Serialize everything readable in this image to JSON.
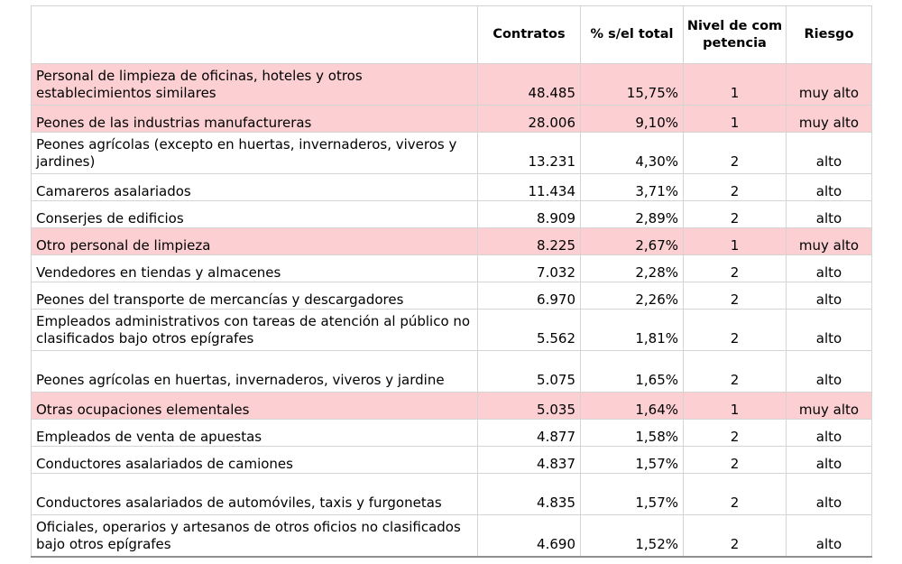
{
  "table": {
    "headers": {
      "name": "",
      "contracts": "Contratos",
      "percent": "% s/el total",
      "level": "Nivel de competencia",
      "risk": "Riesgo"
    },
    "highlight_color": "#fcd0d3",
    "rows": [
      {
        "name": "Personal de limpieza de oficinas, hoteles y otros establecimientos similares",
        "contracts": "48.485",
        "percent": "15,75%",
        "level": "1",
        "risk": "muy alto",
        "highlighted": true
      },
      {
        "name": "Peones de las industrias manufactureras",
        "contracts": "28.006",
        "percent": "9,10%",
        "level": "1",
        "risk": "muy alto",
        "highlighted": true
      },
      {
        "name": "Peones agrícolas (excepto en huertas, invernaderos, viveros y jardines)",
        "contracts": "13.231",
        "percent": "4,30%",
        "level": "2",
        "risk": "alto",
        "highlighted": false
      },
      {
        "name": "Camareros asalariados",
        "contracts": "11.434",
        "percent": "3,71%",
        "level": "2",
        "risk": "alto",
        "highlighted": false
      },
      {
        "name": "Conserjes de edificios",
        "contracts": "8.909",
        "percent": "2,89%",
        "level": "2",
        "risk": "alto",
        "highlighted": false
      },
      {
        "name": "Otro personal de limpieza",
        "contracts": "8.225",
        "percent": "2,67%",
        "level": "1",
        "risk": "muy alto",
        "highlighted": true
      },
      {
        "name": "Vendedores en tiendas y almacenes",
        "contracts": "7.032",
        "percent": "2,28%",
        "level": "2",
        "risk": "alto",
        "highlighted": false
      },
      {
        "name": "Peones del transporte de mercancías y descargadores",
        "contracts": "6.970",
        "percent": "2,26%",
        "level": "2",
        "risk": "alto",
        "highlighted": false
      },
      {
        "name": "Empleados administrativos con tareas de atención al público no clasificados bajo otros epígrafes",
        "contracts": "5.562",
        "percent": "1,81%",
        "level": "2",
        "risk": "alto",
        "highlighted": false
      },
      {
        "name": "Peones agrícolas en huertas, invernaderos, viveros y jardine",
        "contracts": "5.075",
        "percent": "1,65%",
        "level": "2",
        "risk": "alto",
        "highlighted": false
      },
      {
        "name": "Otras ocupaciones elementales",
        "contracts": "5.035",
        "percent": "1,64%",
        "level": "1",
        "risk": "muy alto",
        "highlighted": true
      },
      {
        "name": "Empleados de venta de apuestas",
        "contracts": "4.877",
        "percent": "1,58%",
        "level": "2",
        "risk": "alto",
        "highlighted": false
      },
      {
        "name": "Conductores asalariados de camiones",
        "contracts": "4.837",
        "percent": "1,57%",
        "level": "2",
        "risk": "alto",
        "highlighted": false
      },
      {
        "name": "Conductores asalariados de automóviles, taxis y furgonetas",
        "contracts": "4.835",
        "percent": "1,57%",
        "level": "2",
        "risk": "alto",
        "highlighted": false
      },
      {
        "name": "Oficiales, operarios y artesanos de otros oficios no clasificados bajo otros epígrafes",
        "contracts": "4.690",
        "percent": "1,52%",
        "level": "2",
        "risk": "alto",
        "highlighted": false
      }
    ]
  }
}
